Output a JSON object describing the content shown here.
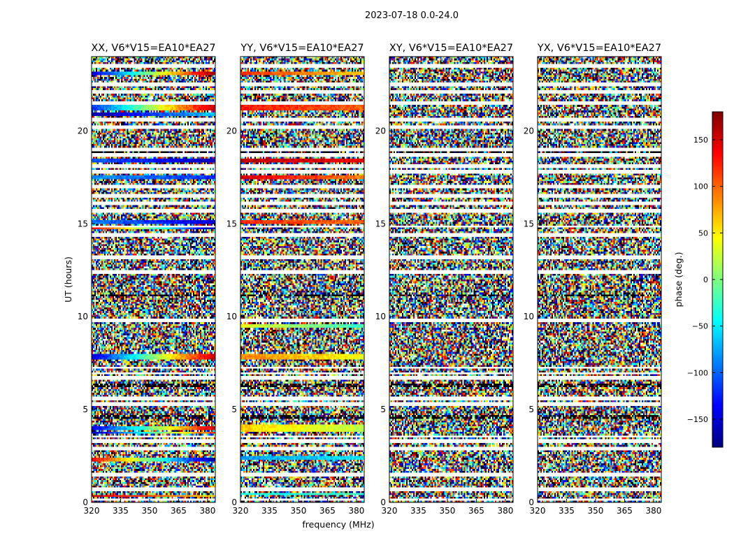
{
  "figure": {
    "suptitle": "2023-07-18 0.0-24.0",
    "xlabel": "frequency (MHz)",
    "ylabel": "UT (hours)"
  },
  "chart_data": {
    "type": "heatmap",
    "colormap": "jet",
    "x_range_mhz": [
      320,
      384
    ],
    "x_ticks": [
      320,
      335,
      350,
      365,
      380
    ],
    "y_range_hours": [
      0,
      24
    ],
    "y_ticks": [
      0,
      5,
      10,
      15,
      20
    ],
    "colorbar": {
      "label": "phase (deg.)",
      "range": [
        -180,
        180
      ],
      "ticks": [
        -150,
        -100,
        -50,
        0,
        50,
        100,
        150
      ],
      "tick_labels": [
        "−150",
        "−100",
        "−50",
        "0",
        "50",
        "100",
        "150"
      ]
    },
    "panels": [
      {
        "title": "XX, V6*V15=EA10*EA27",
        "seed": 11,
        "coherent_bands": [
          {
            "t0": 23.0,
            "t1": 23.2,
            "p0": -150,
            "p1": 175
          },
          {
            "t0": 21.1,
            "t1": 21.4,
            "p0": -120,
            "p1": 160
          },
          {
            "t0": 20.8,
            "t1": 21.0,
            "p0": -170,
            "p1": -60
          },
          {
            "t0": 18.3,
            "t1": 18.5,
            "p0": -100,
            "p1": -160
          },
          {
            "t0": 17.4,
            "t1": 17.6,
            "p0": -80,
            "p1": -120
          },
          {
            "t0": 15.0,
            "t1": 15.2,
            "p0": -90,
            "p1": -150
          },
          {
            "t0": 14.7,
            "t1": 14.9,
            "p0": 140,
            "p1": -170
          },
          {
            "t0": 7.7,
            "t1": 8.0,
            "p0": -150,
            "p1": 160
          },
          {
            "t0": 3.9,
            "t1": 4.1,
            "p0": -150,
            "p1": 150
          },
          {
            "t0": 3.7,
            "t1": 3.85,
            "p0": -160,
            "p1": 120
          },
          {
            "t0": 2.2,
            "t1": 2.4,
            "p0": 140,
            "p1": -170
          },
          {
            "t0": 0.3,
            "t1": 0.45,
            "p0": 150,
            "p1": 60
          }
        ]
      },
      {
        "title": "YY, V6*V15=EA10*EA27",
        "seed": 29,
        "coherent_bands": [
          {
            "t0": 23.0,
            "t1": 23.2,
            "p0": 120,
            "p1": 60
          },
          {
            "t0": 21.1,
            "t1": 21.4,
            "p0": 130,
            "p1": 100
          },
          {
            "t0": 18.3,
            "t1": 18.5,
            "p0": 160,
            "p1": 140
          },
          {
            "t0": 17.4,
            "t1": 17.6,
            "p0": 150,
            "p1": 90
          },
          {
            "t0": 15.0,
            "t1": 15.2,
            "p0": 120,
            "p1": 100
          },
          {
            "t0": 9.4,
            "t1": 9.6,
            "p0": 40,
            "p1": -30
          },
          {
            "t0": 7.7,
            "t1": 8.0,
            "p0": 90,
            "p1": 40
          },
          {
            "t0": 3.8,
            "t1": 4.2,
            "p0": 60,
            "p1": 20
          },
          {
            "t0": 2.3,
            "t1": 2.5,
            "p0": -80,
            "p1": -50
          },
          {
            "t0": 0.4,
            "t1": 0.55,
            "p0": -40,
            "p1": -20
          }
        ]
      },
      {
        "title": "XY, V6*V15=EA10*EA27",
        "seed": 53,
        "coherent_bands": []
      },
      {
        "title": "YX, V6*V15=EA10*EA27",
        "seed": 71,
        "coherent_bands": []
      }
    ],
    "flagged_hours": [
      0.15,
      0.7,
      1.5,
      2.9,
      3.3,
      3.55,
      5.3,
      5.6,
      6.7,
      6.95,
      7.25,
      9.8,
      12.4,
      13.2,
      14.4,
      14.85,
      15.7,
      16.1,
      16.5,
      17.0,
      17.8,
      18.1,
      18.7,
      19.0,
      20.2,
      20.6,
      21.5,
      22.1,
      22.5,
      23.5
    ],
    "dark_bands_hours": [
      19.7,
      19.3,
      18.9,
      20.5,
      21.0,
      20.0,
      12.3,
      11.2,
      10.3,
      6.3,
      4.6,
      4.9
    ]
  }
}
